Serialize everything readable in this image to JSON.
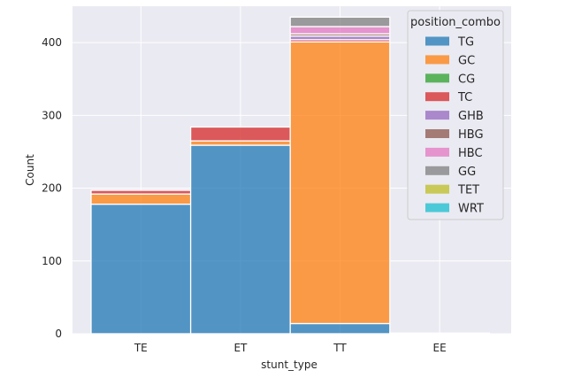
{
  "chart_data": {
    "type": "bar",
    "stacked": true,
    "xlabel": "stunt_type",
    "ylabel": "Count",
    "categories": [
      "TE",
      "ET",
      "TT",
      "EE"
    ],
    "ylim": [
      0,
      450
    ],
    "yticks": [
      0,
      100,
      200,
      300,
      400
    ],
    "grid": true,
    "legend": {
      "title": "position_combo",
      "placement": "top-right"
    },
    "series": [
      {
        "name": "TG",
        "color": "#1f77b4",
        "values": [
          178,
          259,
          14,
          0
        ]
      },
      {
        "name": "GC",
        "color": "#ff7f0e",
        "values": [
          14,
          6,
          387,
          0
        ]
      },
      {
        "name": "CG",
        "color": "#2ca02c",
        "values": [
          0,
          0,
          0,
          0
        ]
      },
      {
        "name": "TC",
        "color": "#d62728",
        "values": [
          5,
          19,
          3,
          0
        ]
      },
      {
        "name": "GHB",
        "color": "#9467bd",
        "values": [
          0,
          0,
          5,
          0
        ]
      },
      {
        "name": "HBG",
        "color": "#8c564b",
        "values": [
          0,
          0,
          3,
          0
        ]
      },
      {
        "name": "HBC",
        "color": "#e377c2",
        "values": [
          0,
          0,
          10,
          0
        ]
      },
      {
        "name": "GG",
        "color": "#7f7f7f",
        "values": [
          0,
          0,
          13,
          0
        ]
      },
      {
        "name": "TET",
        "color": "#bcbd22",
        "values": [
          0,
          0,
          0,
          0
        ]
      },
      {
        "name": "WRT",
        "color": "#17becf",
        "values": [
          0,
          0,
          0,
          1
        ]
      }
    ]
  }
}
